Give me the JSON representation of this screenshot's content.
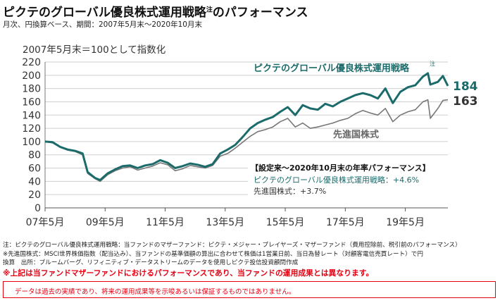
{
  "title": "ピクテのグローバル優良株式運用戦略",
  "title_note": "注",
  "title_suffix": "のパフォーマンス",
  "subtitle": "月次、円換算ベース、期間：2007年5月末～2020年10月末",
  "footnotes": [
    "注：ピクテのグローバル優良株式運用戦略：当ファンドのマザーファンド：ピクテ・メジャー・プレイヤーズ・マザーファンド（費用控除前、税引前のパフォーマンス）",
    "※先進国株式：MSCI世界株価指数（配当込み）、当ファンドの基準価額の算出に合わせて株価は1営業日前、当日為替レート（対顧客電信売買レート）で円",
    "換算　出所：ブルームバーグ、リフィニティブ・データストリームのデータを使用しピクテ投信投資顧問作成"
  ],
  "warning": "※上記は当ファンドマザーファンドにおけるパフォーマンスであり、当ファンドの運用成果とは異なります。",
  "disclaimer": "データは過去の実績であり、将来の運用成果等を示唆あるいは保証するものではありません。",
  "chart_data": {
    "type": "line",
    "ylabel": "2007年5月末＝100として指数化",
    "ylim": [
      0,
      220
    ],
    "yticks": [
      0,
      20,
      40,
      60,
      80,
      100,
      120,
      140,
      160,
      180,
      200,
      220
    ],
    "xlim": [
      "2007-05",
      "2020-10"
    ],
    "xtick_labels": [
      "07年5月",
      "09年5月",
      "11年5月",
      "13年5月",
      "15年5月",
      "17年5月",
      "19年5月"
    ],
    "xtick_dates": [
      "2007-05",
      "2009-05",
      "2011-05",
      "2013-05",
      "2015-05",
      "2017-05",
      "2019-05"
    ],
    "grid": true,
    "colors": {
      "strategy": "#1b6b6b",
      "developed": "#777777"
    },
    "series": [
      {
        "name": "ピクテのグローバル優良株式運用戦略",
        "name_note": "注",
        "end_label": "184",
        "x": [
          "2007-05",
          "2007-08",
          "2007-11",
          "2008-02",
          "2008-05",
          "2008-08",
          "2008-10",
          "2009-01",
          "2009-03",
          "2009-06",
          "2009-09",
          "2009-12",
          "2010-03",
          "2010-06",
          "2010-09",
          "2010-12",
          "2011-03",
          "2011-06",
          "2011-09",
          "2011-12",
          "2012-03",
          "2012-06",
          "2012-09",
          "2012-12",
          "2013-03",
          "2013-06",
          "2013-09",
          "2013-12",
          "2014-03",
          "2014-06",
          "2014-09",
          "2014-12",
          "2015-03",
          "2015-06",
          "2015-09",
          "2015-12",
          "2016-03",
          "2016-06",
          "2016-09",
          "2016-12",
          "2017-03",
          "2017-06",
          "2017-09",
          "2017-12",
          "2018-03",
          "2018-06",
          "2018-09",
          "2018-12",
          "2019-03",
          "2019-06",
          "2019-09",
          "2019-12",
          "2020-02",
          "2020-03",
          "2020-06",
          "2020-08",
          "2020-10"
        ],
        "values": [
          100,
          99,
          92,
          88,
          86,
          82,
          54,
          45,
          42,
          52,
          58,
          63,
          64,
          60,
          64,
          66,
          72,
          68,
          60,
          63,
          67,
          65,
          62,
          66,
          82,
          88,
          95,
          107,
          120,
          128,
          133,
          137,
          145,
          152,
          140,
          155,
          150,
          148,
          157,
          153,
          160,
          165,
          170,
          173,
          170,
          165,
          180,
          158,
          175,
          182,
          185,
          198,
          203,
          186,
          190,
          199,
          184
        ]
      },
      {
        "name": "先進国株式",
        "end_label": "163",
        "x": [
          "2007-05",
          "2007-08",
          "2007-11",
          "2008-02",
          "2008-05",
          "2008-08",
          "2008-10",
          "2009-01",
          "2009-03",
          "2009-06",
          "2009-09",
          "2009-12",
          "2010-03",
          "2010-06",
          "2010-09",
          "2010-12",
          "2011-03",
          "2011-06",
          "2011-09",
          "2011-12",
          "2012-03",
          "2012-06",
          "2012-09",
          "2012-12",
          "2013-03",
          "2013-06",
          "2013-09",
          "2013-12",
          "2014-03",
          "2014-06",
          "2014-09",
          "2014-12",
          "2015-03",
          "2015-06",
          "2015-09",
          "2015-12",
          "2016-03",
          "2016-06",
          "2016-09",
          "2016-12",
          "2017-03",
          "2017-06",
          "2017-09",
          "2017-12",
          "2018-03",
          "2018-06",
          "2018-09",
          "2018-12",
          "2019-03",
          "2019-06",
          "2019-09",
          "2019-12",
          "2020-02",
          "2020-03",
          "2020-06",
          "2020-08",
          "2020-10"
        ],
        "values": [
          100,
          98,
          92,
          87,
          85,
          80,
          52,
          44,
          40,
          50,
          56,
          60,
          62,
          57,
          60,
          63,
          68,
          65,
          56,
          59,
          64,
          62,
          60,
          64,
          78,
          82,
          90,
          99,
          108,
          115,
          118,
          122,
          130,
          135,
          122,
          128,
          120,
          122,
          125,
          128,
          132,
          135,
          142,
          147,
          143,
          140,
          150,
          130,
          140,
          145,
          148,
          160,
          163,
          135,
          150,
          162,
          163
        ]
      }
    ],
    "annotation": {
      "title": "【設定来～2020年10月末の年率パフォーマンス】",
      "line1": "ピクテのグローバル優良株式運用戦略：+4.6%",
      "line2": "先進国株式：+3.7%"
    }
  }
}
